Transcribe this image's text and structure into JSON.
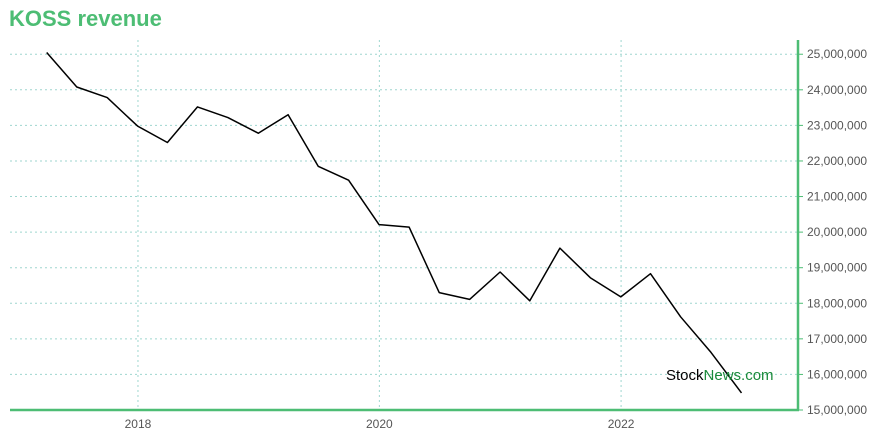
{
  "chart_data": {
    "type": "line",
    "title": "KOSS revenue",
    "xlabel": "",
    "ylabel": "",
    "x_ticks": [
      "2018",
      "2020",
      "2022"
    ],
    "y_ticks": [
      "15,000,000",
      "16,000,000",
      "17,000,000",
      "18,000,000",
      "19,000,000",
      "20,000,000",
      "21,000,000",
      "22,000,000",
      "23,000,000",
      "24,000,000",
      "25,000,000"
    ],
    "ylim": [
      15000000,
      25400000
    ],
    "xlim": [
      "2016-12-10",
      "2023-06-20"
    ],
    "grid": true,
    "axis_position": "right",
    "colors": {
      "title": "#4dbd74",
      "axis": "#4dbd74",
      "line": "#000000",
      "grid": "#9fd6cf"
    },
    "series": [
      {
        "x": [
          "2017-03-31",
          "2017-06-30",
          "2017-09-30",
          "2017-12-31",
          "2018-03-31",
          "2018-06-30",
          "2018-09-30",
          "2018-12-31",
          "2019-03-31",
          "2019-06-30",
          "2019-09-30",
          "2019-12-31",
          "2020-03-31",
          "2020-06-30",
          "2020-09-30",
          "2020-12-31",
          "2021-03-31",
          "2021-06-30",
          "2021-09-30",
          "2021-12-31",
          "2022-03-31",
          "2022-06-30",
          "2022-09-30",
          "2022-12-31"
        ],
        "values": [
          25050000,
          24080000,
          23780000,
          22980000,
          22520000,
          23520000,
          23220000,
          22780000,
          23300000,
          21850000,
          21460000,
          20210000,
          20140000,
          18300000,
          18110000,
          18880000,
          18070000,
          19550000,
          18720000,
          18180000,
          18830000,
          17620000,
          16620000,
          15480000
        ]
      }
    ]
  },
  "watermark": {
    "part1": "Stock",
    "part2": "News",
    "part3": ".com",
    "color1": "#000000",
    "color2": "#1a8a3a"
  }
}
